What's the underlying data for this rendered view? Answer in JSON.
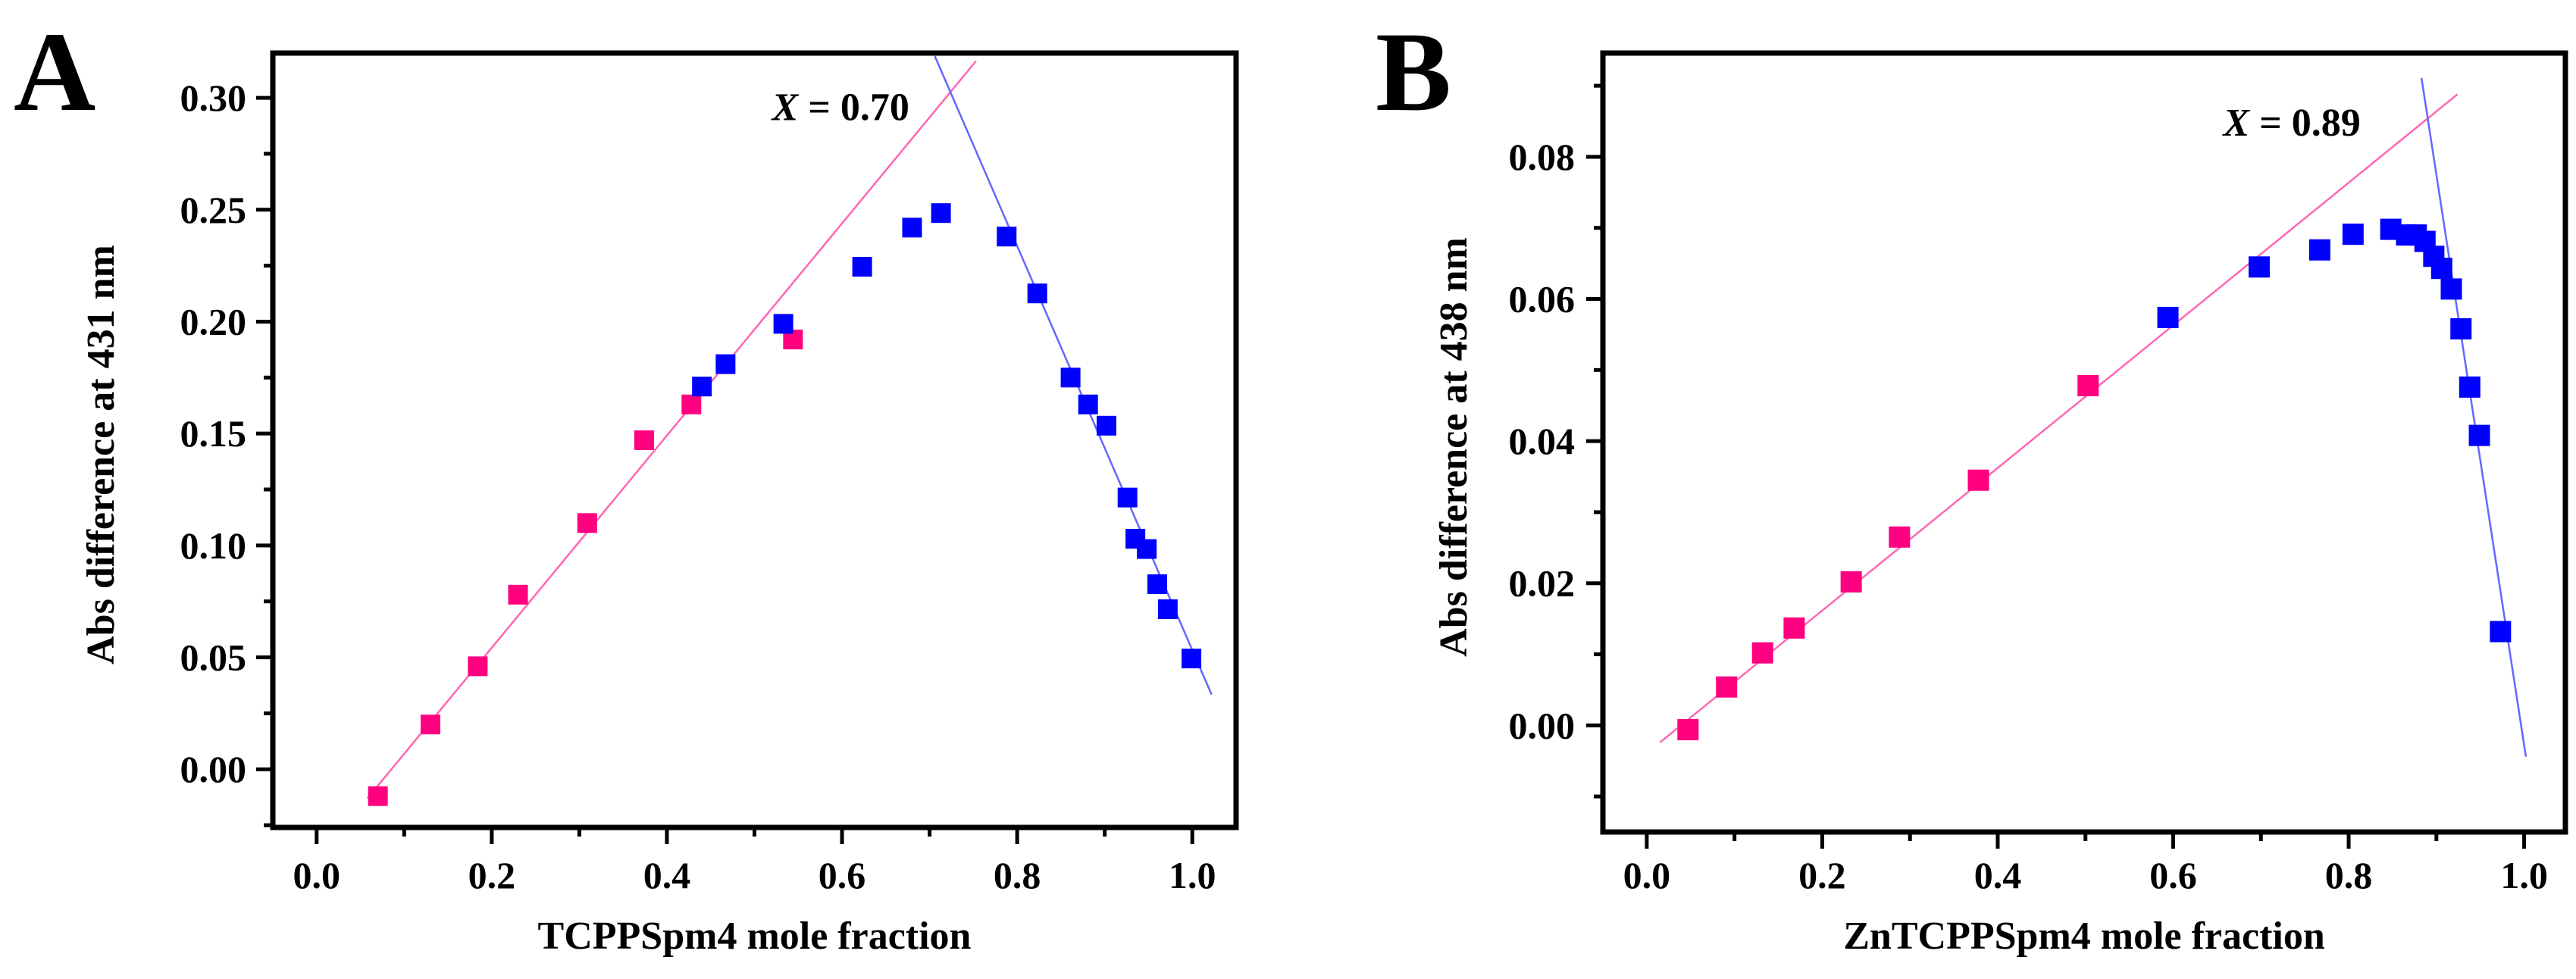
{
  "chart_data": [
    {
      "type": "scatter",
      "panel_label": "A",
      "xlabel": "TCPPSpm4 mole fraction",
      "ylabel": "Abs difference at 431 nm",
      "xlim": [
        -0.05,
        1.05
      ],
      "ylim": [
        -0.026,
        0.32
      ],
      "xticks": [
        "0.0",
        "0.2",
        "0.4",
        "0.6",
        "0.8",
        "1.0"
      ],
      "xtick_values": [
        0.0,
        0.2,
        0.4,
        0.6,
        0.8,
        1.0
      ],
      "yticks": [
        "0.00",
        "0.05",
        "0.10",
        "0.15",
        "0.20",
        "0.25",
        "0.30"
      ],
      "ytick_values": [
        0.0,
        0.05,
        0.1,
        0.15,
        0.2,
        0.25,
        0.3
      ],
      "annotation": {
        "var": "X",
        "text": " = 0.70",
        "x": 0.52,
        "y": 0.29
      },
      "series": [
        {
          "name": "pink",
          "color": "#ff0080",
          "x": [
            0.07,
            0.13,
            0.184,
            0.23,
            0.309,
            0.374,
            0.428,
            0.544
          ],
          "y": [
            -0.012,
            0.02,
            0.046,
            0.078,
            0.11,
            0.147,
            0.163,
            0.192
          ]
        },
        {
          "name": "blue",
          "color": "#0000ff",
          "x": [
            0.44,
            0.467,
            0.533,
            0.623,
            0.68,
            0.713,
            0.788,
            0.823,
            0.861,
            0.881,
            0.902,
            0.926,
            0.935,
            0.948,
            0.96,
            0.972,
            0.999
          ],
          "y": [
            0.171,
            0.181,
            0.199,
            0.2245,
            0.242,
            0.2485,
            0.238,
            0.2126,
            0.175,
            0.163,
            0.1535,
            0.1214,
            0.103,
            0.0984,
            0.0827,
            0.0715,
            0.0495
          ]
        }
      ],
      "fit_lines": [
        {
          "color": "#ff66b3",
          "x": [
            0.058,
            0.753
          ],
          "y": [
            -0.013,
            0.3164
          ]
        },
        {
          "color": "#6666ff",
          "x": [
            0.706,
            1.022
          ],
          "y": [
            0.3186,
            0.0334
          ]
        }
      ]
    },
    {
      "type": "scatter",
      "panel_label": "B",
      "xlabel": "ZnTCPPSpm4 mole fraction",
      "ylabel": "Abs difference at 438 nm",
      "xlim": [
        -0.05,
        1.047
      ],
      "ylim": [
        -0.015,
        0.0946
      ],
      "xticks": [
        "0.0",
        "0.2",
        "0.4",
        "0.6",
        "0.8",
        "1.0"
      ],
      "xtick_values": [
        0.0,
        0.2,
        0.4,
        0.6,
        0.8,
        1.0
      ],
      "yticks": [
        "0.00",
        "0.02",
        "0.04",
        "0.06",
        "0.08"
      ],
      "ytick_values": [
        0.0,
        0.02,
        0.04,
        0.06,
        0.08
      ],
      "annotation": {
        "var": "X",
        "text": " = 0.89",
        "x": 0.657,
        "y": 0.083
      },
      "series": [
        {
          "name": "pink",
          "color": "#ff0080",
          "x": [
            0.047,
            0.091,
            0.132,
            0.168,
            0.233,
            0.288,
            0.378,
            0.503
          ],
          "y": [
            -0.0006,
            0.0054,
            0.0102,
            0.0137,
            0.0202,
            0.0265,
            0.0345,
            0.0478
          ]
        },
        {
          "name": "blue",
          "color": "#0000ff",
          "x": [
            0.594,
            0.698,
            0.767,
            0.805,
            0.848,
            0.866,
            0.877,
            0.887,
            0.897,
            0.906,
            0.917,
            0.928,
            0.938,
            0.949,
            0.973
          ],
          "y": [
            0.0574,
            0.0645,
            0.0669,
            0.0691,
            0.0698,
            0.069,
            0.069,
            0.0681,
            0.066,
            0.0643,
            0.0614,
            0.0558,
            0.0476,
            0.0408,
            0.0132
          ]
        }
      ],
      "fit_lines": [
        {
          "color": "#ff66b3",
          "x": [
            0.015,
            0.924
          ],
          "y": [
            -0.0024,
            0.0888
          ]
        },
        {
          "color": "#6666ff",
          "x": [
            0.883,
            1.002
          ],
          "y": [
            0.0911,
            -0.0044
          ]
        }
      ]
    }
  ]
}
